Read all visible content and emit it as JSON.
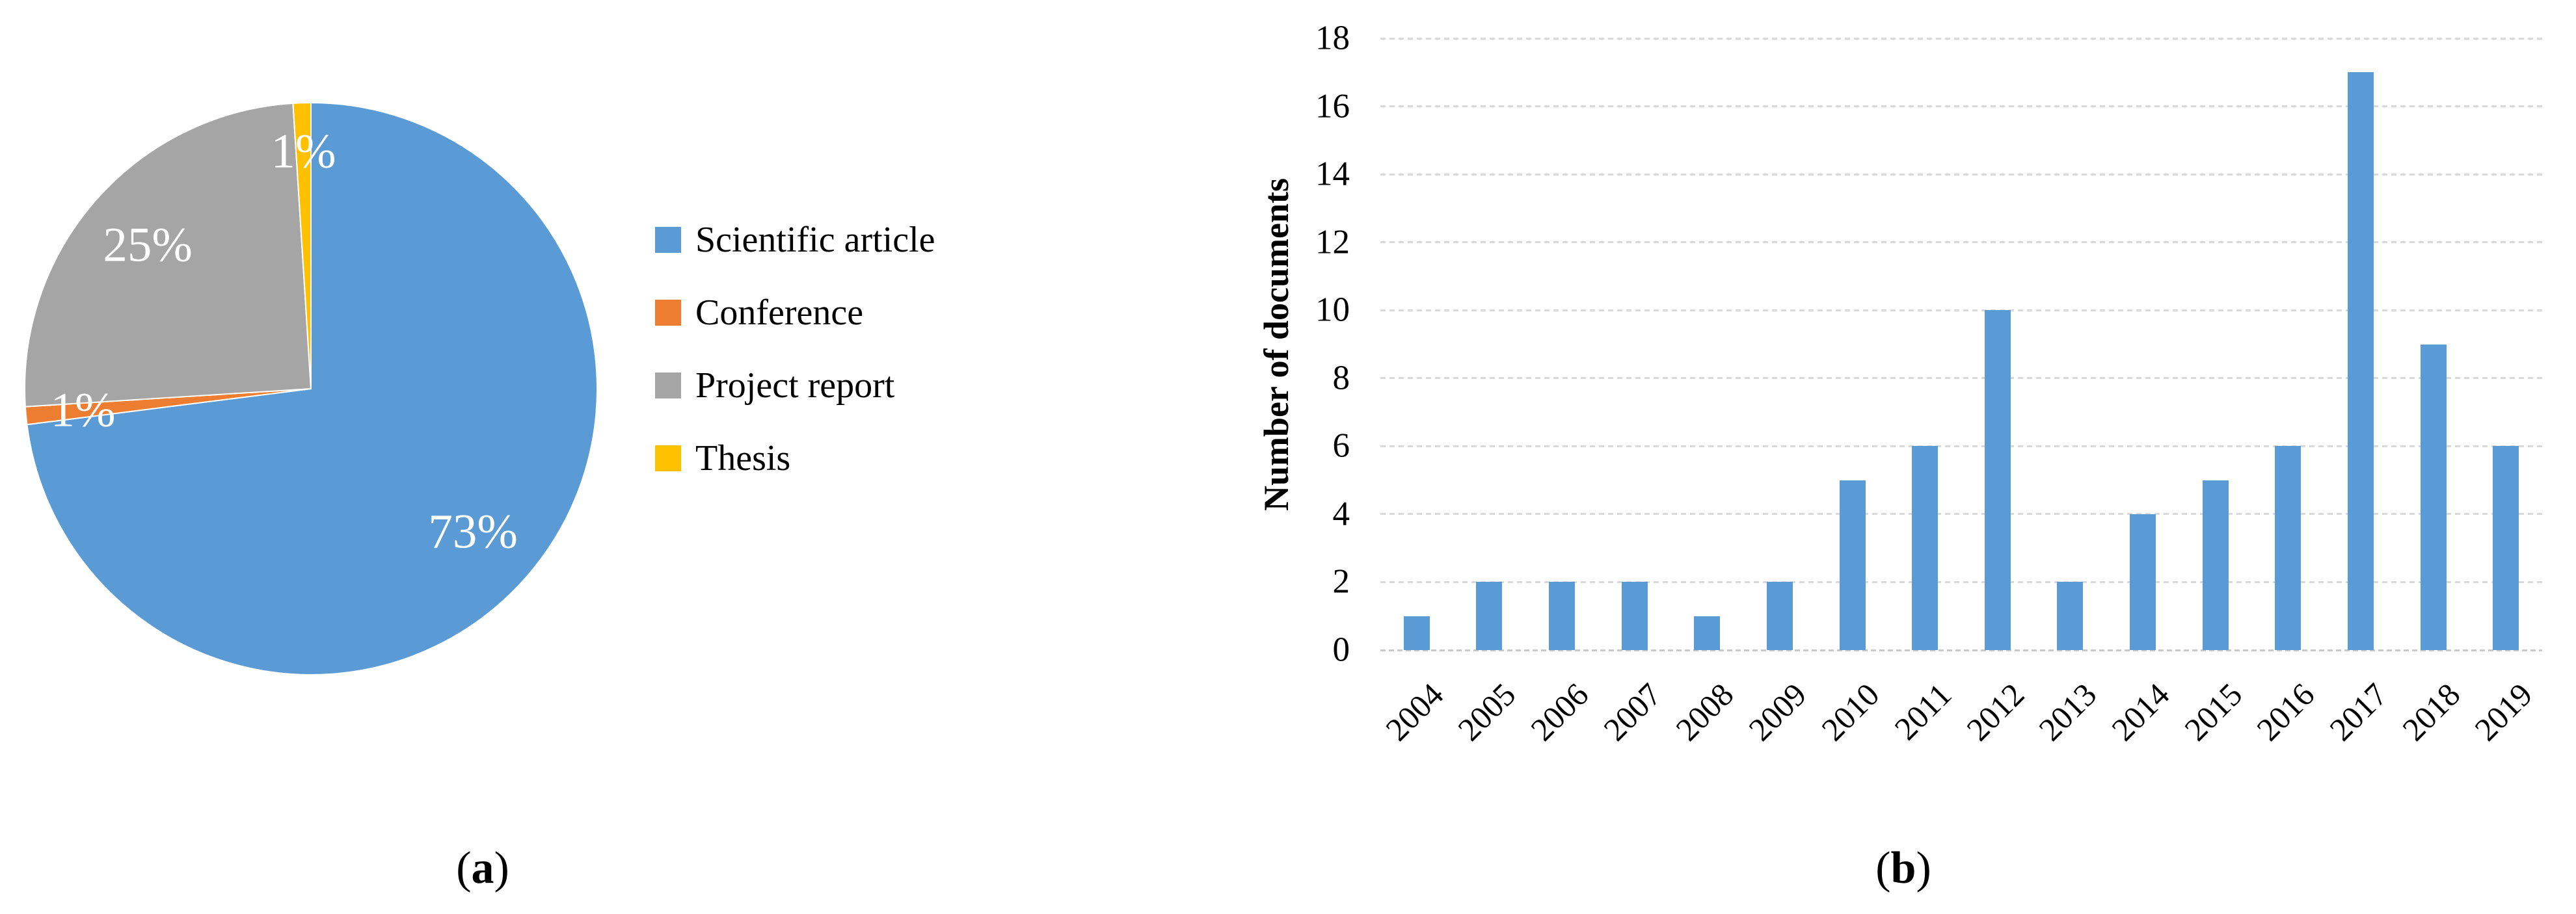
{
  "panel_a": {
    "caption": {
      "prefix": "(",
      "letter": "a",
      "suffix": ")"
    },
    "legend": {
      "items": [
        {
          "label": "Scientific article",
          "color": "#5B9BD5"
        },
        {
          "label": "Conference",
          "color": "#ED7D31"
        },
        {
          "label": "Project report",
          "color": "#A5A5A5"
        },
        {
          "label": "Thesis",
          "color": "#FFC000"
        }
      ]
    }
  },
  "panel_b": {
    "caption": {
      "prefix": "(",
      "letter": "b",
      "suffix": ")"
    }
  },
  "chart_data": [
    {
      "type": "pie",
      "title": "",
      "direction": "clockwise",
      "start_angle_deg": 0,
      "slice_label_color": "#FFFFFF",
      "legend_position": "right",
      "slices": [
        {
          "label": "Scientific article",
          "value": 73,
          "display": "73%",
          "color": "#5B9BD5",
          "label_radius": 0.755
        },
        {
          "label": "Conference",
          "value": 1,
          "display": "1%",
          "color": "#ED7D31",
          "label_radius": 0.8
        },
        {
          "label": "Project report",
          "value": 25,
          "display": "25%",
          "color": "#A5A5A5",
          "label_radius": 0.76
        },
        {
          "label": "Thesis",
          "value": 1,
          "display": "1%",
          "color": "#FFC000",
          "label_radius": 0.83
        }
      ]
    },
    {
      "type": "bar",
      "title": "",
      "categories": [
        "2004",
        "2005",
        "2006",
        "2007",
        "2008",
        "2009",
        "2010",
        "2011",
        "2012",
        "2013",
        "2014",
        "2015",
        "2016",
        "2017",
        "2018",
        "2019"
      ],
      "values": [
        1,
        2,
        2,
        2,
        1,
        2,
        5,
        6,
        10,
        2,
        4,
        5,
        6,
        17,
        9,
        6
      ],
      "xlabel": "",
      "ylabel": "Number of documents",
      "ylim": [
        0,
        18
      ],
      "ytick_step": 2,
      "grid": true,
      "bar_color": "#5B9BD5",
      "gridline_color": "#D9D9D9",
      "axis_line_color": "#C9C9C9",
      "x_label_rotation_deg": -45
    }
  ]
}
